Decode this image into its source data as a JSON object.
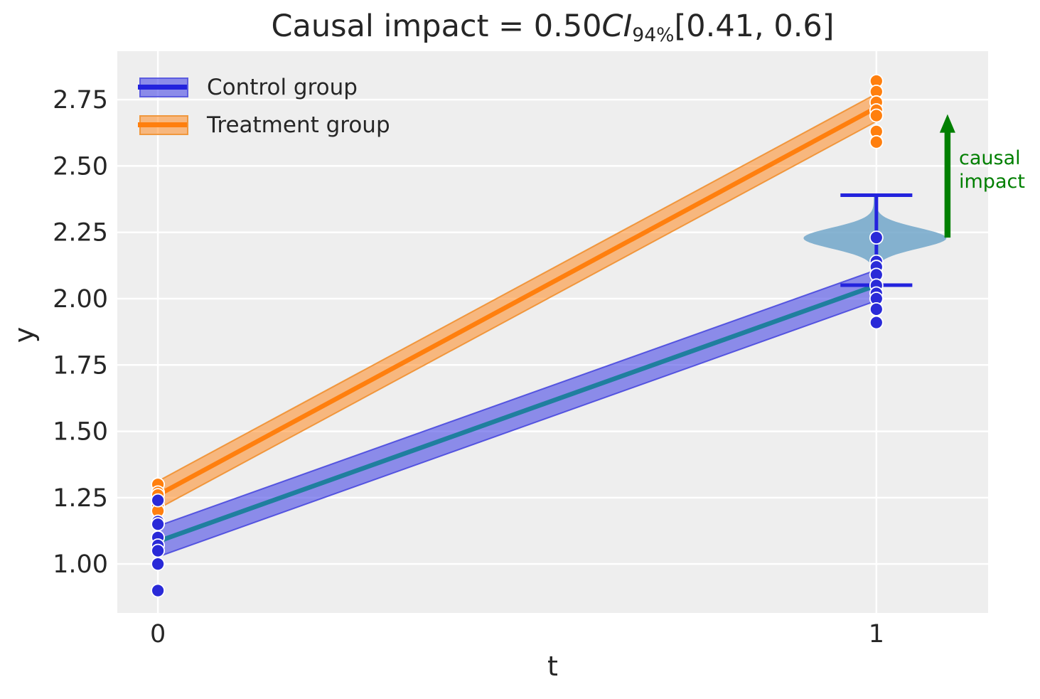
{
  "title": {
    "prefix": "Causal impact = 0.50",
    "ci": "CI",
    "subscript": "94%",
    "interval": "[0.41, 0.6]"
  },
  "axes": {
    "xlabel": "t",
    "ylabel": "y"
  },
  "legend": {
    "items": [
      {
        "label": "Control group",
        "band_fill": "rgba(74,74,230,0.6)",
        "band_edge": "#5c5ce0",
        "line_color": "#2222dd"
      },
      {
        "label": "Treatment group",
        "band_fill": "rgba(255,127,14,0.5)",
        "band_edge": "#f0983e",
        "line_color": "#ff7f0e"
      }
    ]
  },
  "annotation": {
    "lines": [
      "causal",
      "impact"
    ],
    "color": "#007f00"
  },
  "chart_data": {
    "type": "line",
    "subtype": "regression-fit-with-scatter-violin-and-ci-annotation",
    "title": "Causal impact = 0.50 CI 94% [0.41, 0.6]",
    "xlabel": "t",
    "ylabel": "y",
    "xlim": [
      -0.0565,
      1.1555
    ],
    "ylim": [
      0.8155,
      2.9325
    ],
    "grid": true,
    "legend_position": "upper left",
    "background_color": "#eeeeee",
    "grid_color": "#ffffff",
    "text_color": "#262626",
    "xticks": [
      {
        "value": 0,
        "label": "0"
      },
      {
        "value": 1,
        "label": "1"
      }
    ],
    "yticks": [
      {
        "value": 1.0,
        "label": "1.00"
      },
      {
        "value": 1.25,
        "label": "1.25"
      },
      {
        "value": 1.5,
        "label": "1.50"
      },
      {
        "value": 1.75,
        "label": "1.75"
      },
      {
        "value": 2.0,
        "label": "2.00"
      },
      {
        "value": 2.25,
        "label": "2.25"
      },
      {
        "value": 2.5,
        "label": "2.50"
      },
      {
        "value": 2.75,
        "label": "2.75"
      }
    ],
    "regression_lines": [
      {
        "name": "Control group",
        "x": [
          0,
          1
        ],
        "y": [
          1.085,
          2.05
        ],
        "band_halfwidth": 0.058,
        "line_color": "#1f7f9e",
        "band_fill": "rgba(74,74,230,0.6)",
        "band_edge": "rgba(67,67,221,0.85)"
      },
      {
        "name": "Treatment group",
        "x": [
          0,
          1
        ],
        "y": [
          1.26,
          2.72
        ],
        "band_halfwidth": 0.052,
        "line_color": "#ff7f0e",
        "band_fill": "rgba(255,127,14,0.5)",
        "band_edge": "rgba(240,140,40,0.85)"
      }
    ],
    "scatter": [
      {
        "group": "treatment",
        "t": 0,
        "color": "#ff7f0e",
        "y": [
          1.3,
          1.27,
          1.26,
          1.22,
          1.2
        ]
      },
      {
        "group": "treatment",
        "t": 1,
        "color": "#ff7f0e",
        "y": [
          2.82,
          2.78,
          2.74,
          2.71,
          2.69,
          2.63,
          2.59
        ]
      },
      {
        "group": "control",
        "t": 0,
        "color": "#2a2ad8",
        "y": [
          1.24,
          1.16,
          1.15,
          1.1,
          1.07,
          1.05,
          1.0,
          0.9
        ]
      },
      {
        "group": "control",
        "t": 1,
        "color": "#2a2ad8",
        "y": [
          2.23,
          2.14,
          2.12,
          2.09,
          2.05,
          2.02,
          2.0,
          1.96,
          1.91
        ]
      }
    ],
    "violin": {
      "x": 0.998,
      "center": 2.228,
      "top": 2.39,
      "bottom": 2.055,
      "max_halfwidth": 0.098,
      "sigma": 0.055,
      "fill": "rgba(109,164,200,0.82)"
    },
    "errorbar": {
      "x": 1,
      "top": 2.39,
      "bottom": 2.051,
      "cap_halfwidth": 0.05,
      "color": "#2323dd"
    },
    "arrow": {
      "x": 1.099,
      "y_from": 2.23,
      "y_to": 2.695,
      "color": "#007f00",
      "label": "causal impact"
    }
  }
}
